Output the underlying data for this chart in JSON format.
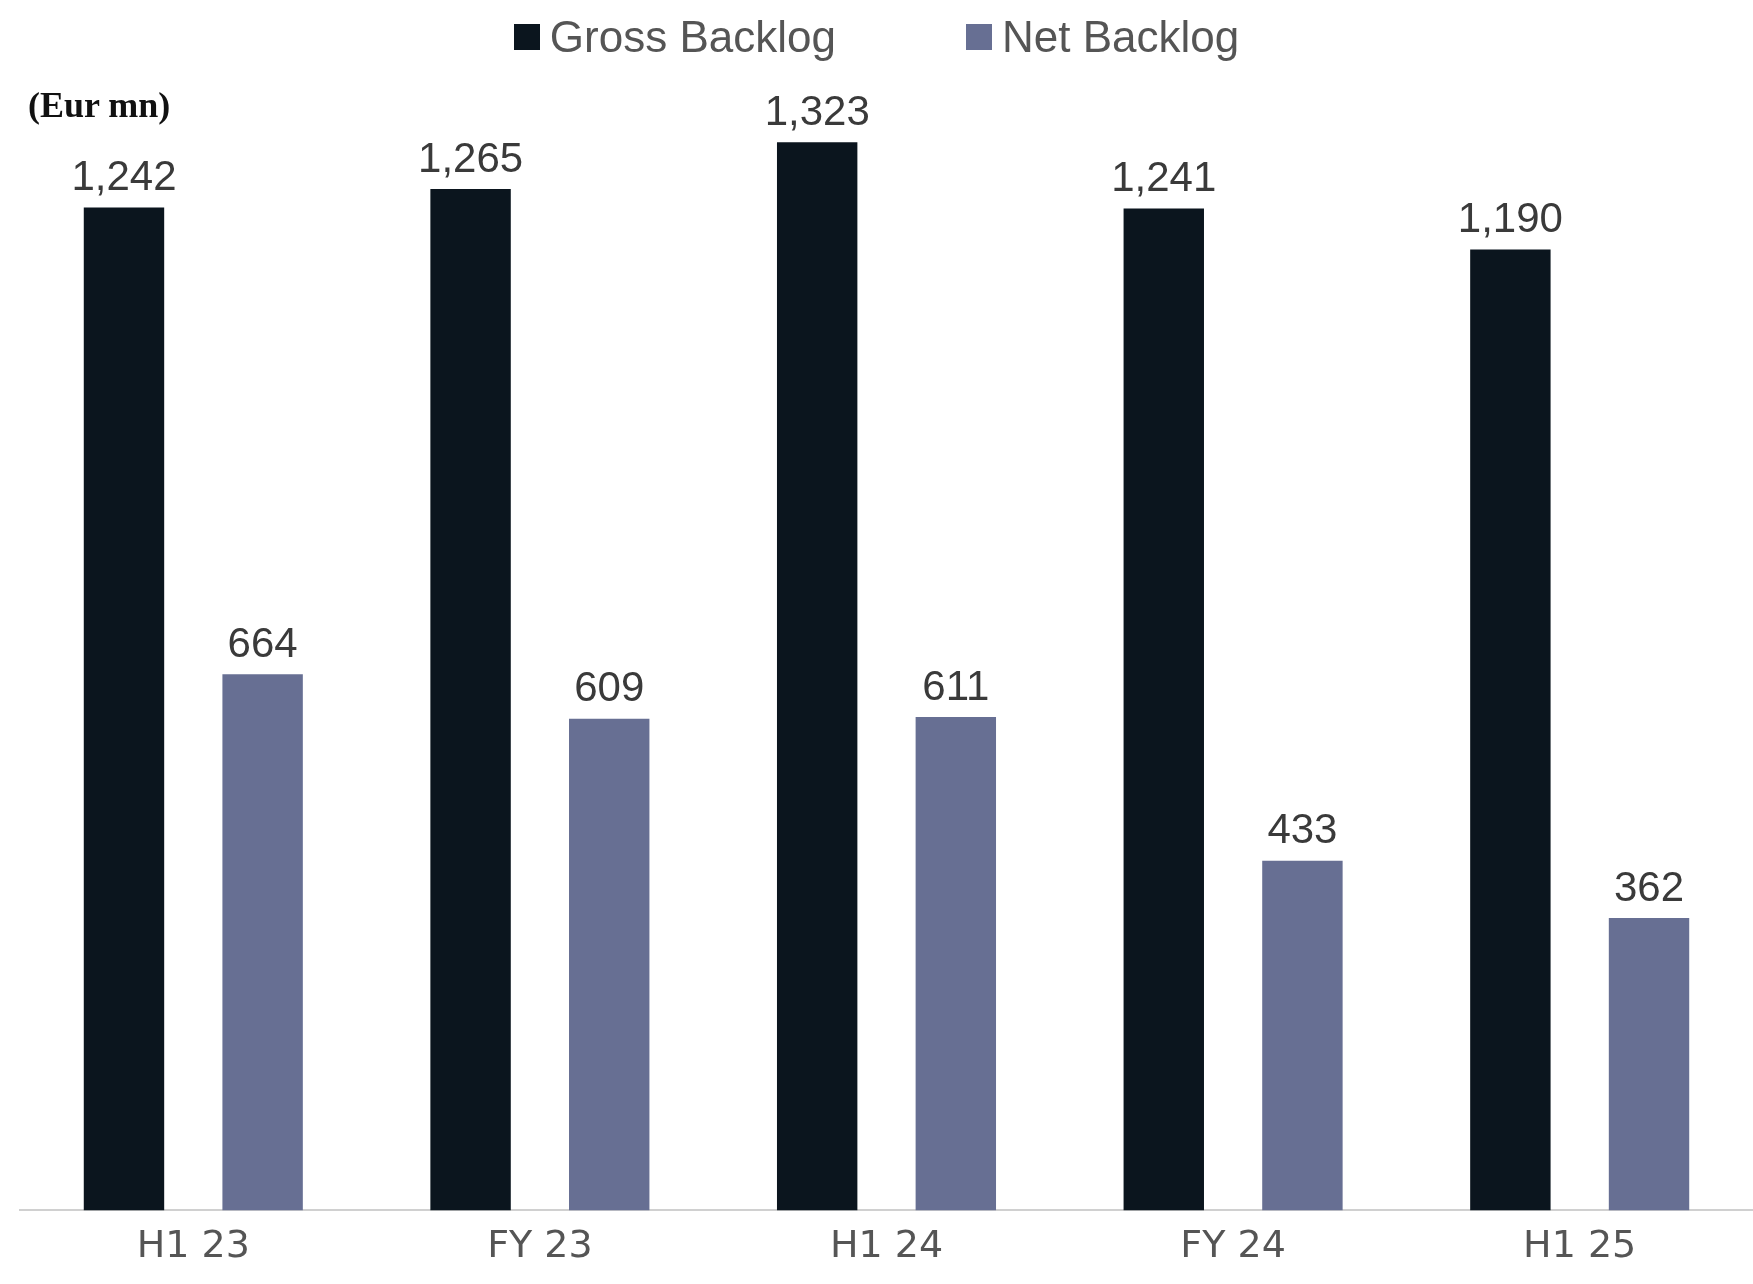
{
  "chart_data": {
    "type": "bar",
    "ylabel": "(Eur mn)",
    "categories": [
      "H1 23",
      "FY 23",
      "H1 24",
      "FY 24",
      "H1 25"
    ],
    "series": [
      {
        "name": "Gross Backlog",
        "color": "#0b151e",
        "values": [
          1242,
          1265,
          1323,
          1241,
          1190
        ],
        "value_labels": [
          "1,242",
          "1,265",
          "1,323",
          "1,241",
          "1,190"
        ]
      },
      {
        "name": "Net Backlog",
        "color": "#676f93",
        "values": [
          664,
          609,
          611,
          433,
          362
        ],
        "value_labels": [
          "664",
          "609",
          "611",
          "433",
          "362"
        ]
      }
    ],
    "legend": "top",
    "grid": false
  }
}
